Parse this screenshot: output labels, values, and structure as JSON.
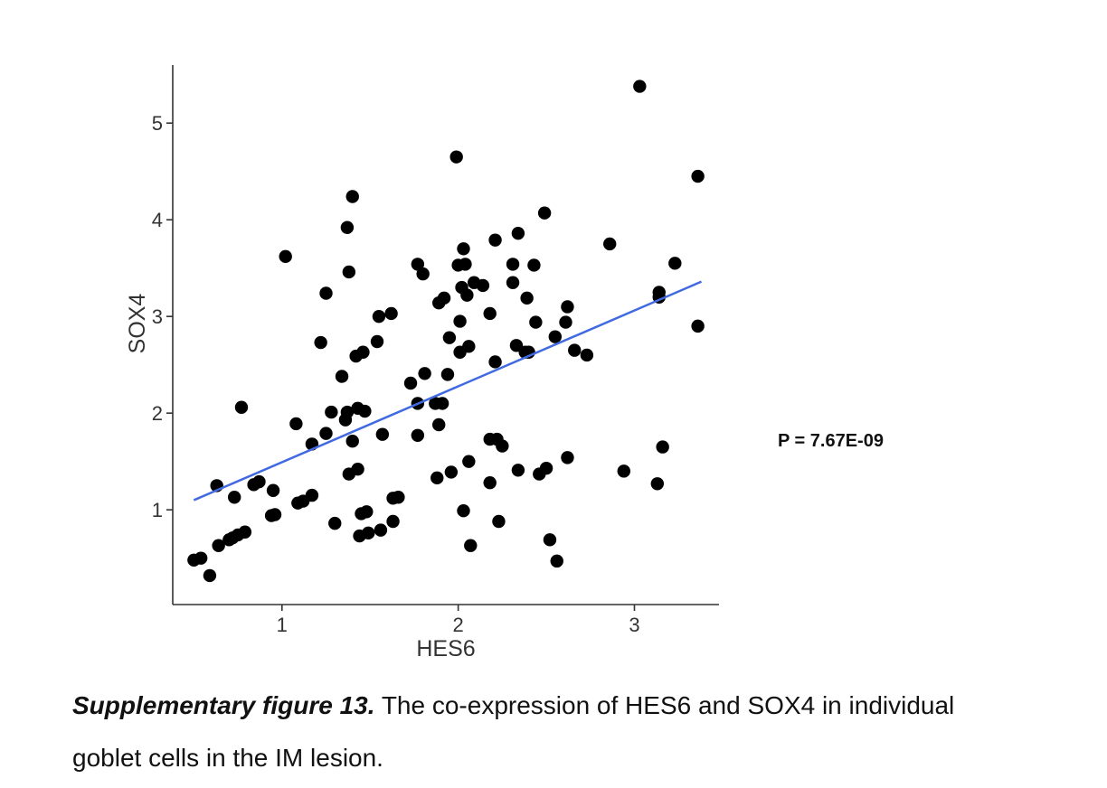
{
  "chart_data": {
    "type": "scatter",
    "xlabel": "HES6",
    "ylabel": "SOX4",
    "xlim": [
      0.38,
      3.48
    ],
    "ylim": [
      0.02,
      5.6
    ],
    "xticks": [
      1,
      2,
      3
    ],
    "yticks": [
      1,
      2,
      3,
      4,
      5
    ],
    "grid": false,
    "point_color": "#000000",
    "fit_color": "#4169E1",
    "annotation": "P = 7.67E-09",
    "fit_line": {
      "x": [
        0.5,
        3.38
      ],
      "y": [
        1.1,
        3.36
      ]
    },
    "points": [
      [
        0.5,
        0.48
      ],
      [
        0.54,
        0.5
      ],
      [
        0.59,
        0.32
      ],
      [
        0.63,
        1.25
      ],
      [
        0.64,
        0.63
      ],
      [
        0.7,
        0.69
      ],
      [
        0.72,
        0.71
      ],
      [
        0.73,
        1.13
      ],
      [
        0.75,
        0.74
      ],
      [
        0.77,
        2.06
      ],
      [
        0.79,
        0.77
      ],
      [
        0.84,
        1.26
      ],
      [
        0.87,
        1.29
      ],
      [
        0.94,
        0.94
      ],
      [
        0.95,
        1.2
      ],
      [
        0.96,
        0.95
      ],
      [
        1.02,
        3.62
      ],
      [
        1.08,
        1.89
      ],
      [
        1.09,
        1.07
      ],
      [
        1.12,
        1.09
      ],
      [
        1.17,
        1.68
      ],
      [
        1.17,
        1.15
      ],
      [
        1.22,
        2.73
      ],
      [
        1.25,
        3.24
      ],
      [
        1.25,
        1.79
      ],
      [
        1.28,
        2.01
      ],
      [
        1.3,
        0.86
      ],
      [
        1.34,
        2.38
      ],
      [
        1.36,
        1.93
      ],
      [
        1.37,
        2.01
      ],
      [
        1.37,
        3.92
      ],
      [
        1.38,
        3.46
      ],
      [
        1.38,
        1.37
      ],
      [
        1.4,
        4.24
      ],
      [
        1.4,
        1.71
      ],
      [
        1.42,
        2.59
      ],
      [
        1.43,
        2.05
      ],
      [
        1.43,
        1.42
      ],
      [
        1.44,
        0.73
      ],
      [
        1.45,
        0.96
      ],
      [
        1.46,
        2.63
      ],
      [
        1.47,
        2.02
      ],
      [
        1.48,
        0.98
      ],
      [
        1.49,
        0.76
      ],
      [
        1.54,
        2.74
      ],
      [
        1.55,
        3.0
      ],
      [
        1.56,
        0.79
      ],
      [
        1.57,
        1.78
      ],
      [
        1.62,
        3.03
      ],
      [
        1.63,
        0.88
      ],
      [
        1.63,
        1.12
      ],
      [
        1.66,
        1.13
      ],
      [
        1.73,
        2.31
      ],
      [
        1.77,
        3.54
      ],
      [
        1.77,
        2.1
      ],
      [
        1.77,
        1.77
      ],
      [
        1.8,
        3.44
      ],
      [
        1.81,
        2.41
      ],
      [
        1.87,
        2.1
      ],
      [
        1.88,
        1.33
      ],
      [
        1.89,
        1.88
      ],
      [
        1.89,
        3.14
      ],
      [
        1.91,
        2.1
      ],
      [
        1.92,
        3.19
      ],
      [
        1.94,
        2.4
      ],
      [
        1.95,
        2.78
      ],
      [
        1.96,
        1.39
      ],
      [
        1.99,
        4.65
      ],
      [
        2.0,
        3.53
      ],
      [
        2.01,
        2.95
      ],
      [
        2.01,
        2.63
      ],
      [
        2.02,
        3.3
      ],
      [
        2.03,
        0.99
      ],
      [
        2.03,
        3.7
      ],
      [
        2.04,
        3.54
      ],
      [
        2.05,
        3.22
      ],
      [
        2.06,
        2.69
      ],
      [
        2.06,
        1.5
      ],
      [
        2.07,
        0.63
      ],
      [
        2.09,
        3.35
      ],
      [
        2.14,
        3.32
      ],
      [
        2.18,
        1.28
      ],
      [
        2.18,
        1.73
      ],
      [
        2.18,
        3.03
      ],
      [
        2.21,
        2.53
      ],
      [
        2.21,
        3.79
      ],
      [
        2.22,
        1.73
      ],
      [
        2.23,
        0.88
      ],
      [
        2.25,
        1.66
      ],
      [
        2.31,
        3.54
      ],
      [
        2.31,
        3.35
      ],
      [
        2.33,
        2.7
      ],
      [
        2.34,
        1.41
      ],
      [
        2.34,
        3.86
      ],
      [
        2.38,
        2.63
      ],
      [
        2.39,
        3.19
      ],
      [
        2.4,
        2.63
      ],
      [
        2.43,
        3.53
      ],
      [
        2.44,
        2.94
      ],
      [
        2.46,
        1.37
      ],
      [
        2.49,
        4.07
      ],
      [
        2.5,
        1.43
      ],
      [
        2.52,
        0.69
      ],
      [
        2.55,
        2.79
      ],
      [
        2.56,
        0.47
      ],
      [
        2.61,
        2.94
      ],
      [
        2.62,
        3.1
      ],
      [
        2.62,
        1.54
      ],
      [
        2.66,
        2.65
      ],
      [
        2.73,
        2.6
      ],
      [
        2.86,
        3.75
      ],
      [
        2.94,
        1.4
      ],
      [
        3.03,
        5.38
      ],
      [
        3.13,
        1.27
      ],
      [
        3.14,
        3.25
      ],
      [
        3.14,
        3.2
      ],
      [
        3.16,
        1.65
      ],
      [
        3.23,
        3.55
      ],
      [
        3.36,
        4.45
      ],
      [
        3.36,
        2.9
      ]
    ]
  },
  "caption": {
    "bold": "Supplementary figure 13.",
    "line1": " The co-expression of HES6 and SOX4 in individual",
    "line2": "goblet cells in the IM lesion."
  }
}
